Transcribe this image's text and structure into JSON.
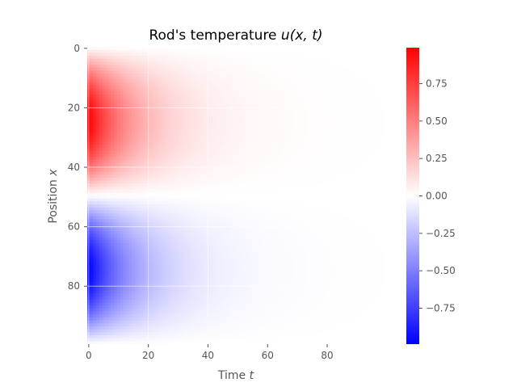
{
  "chart_data": {
    "type": "heatmap",
    "title_prefix": "Rod's temperature ",
    "title_math": "u(x, t)",
    "xlabel_text": "Time ",
    "xlabel_var": "t",
    "ylabel_text": "Position ",
    "ylabel_var": "x",
    "x_range": [
      0,
      99
    ],
    "y_range": [
      0,
      99
    ],
    "y_inverted": true,
    "x_ticks": [
      {
        "value": 0,
        "label": "0"
      },
      {
        "value": 20,
        "label": "20"
      },
      {
        "value": 40,
        "label": "40"
      },
      {
        "value": 60,
        "label": "60"
      },
      {
        "value": 80,
        "label": "80"
      }
    ],
    "y_ticks": [
      {
        "value": 0,
        "label": "0"
      },
      {
        "value": 20,
        "label": "20"
      },
      {
        "value": 40,
        "label": "40"
      },
      {
        "value": 60,
        "label": "60"
      },
      {
        "value": 80,
        "label": "80"
      }
    ],
    "grid": true,
    "colormap": "bwr",
    "colormap_colors": {
      "low": "#0000ff",
      "mid": "#ffffff",
      "high": "#ff0000"
    },
    "value_range": [
      -0.99,
      0.99
    ],
    "colorbar_ticks": [
      {
        "value": 0.75,
        "label": "0.75"
      },
      {
        "value": 0.5,
        "label": "0.50"
      },
      {
        "value": 0.25,
        "label": "0.25"
      },
      {
        "value": 0.0,
        "label": "0.00"
      },
      {
        "value": -0.25,
        "label": "−0.25"
      },
      {
        "value": -0.5,
        "label": "−0.50"
      },
      {
        "value": -0.75,
        "label": "−0.75"
      }
    ],
    "field": {
      "description_of_values": "u(x,t) = 0.99*sign(50-x) * cos(pi*(|x-24.5|)/50 approx) * exp(-t/16) style decay; warm upper half x<50, cold lower half x>=50",
      "upper_half_peak": 0.99,
      "lower_half_peak": -0.99,
      "split_position": 50,
      "decay_time_constant": 16
    }
  }
}
